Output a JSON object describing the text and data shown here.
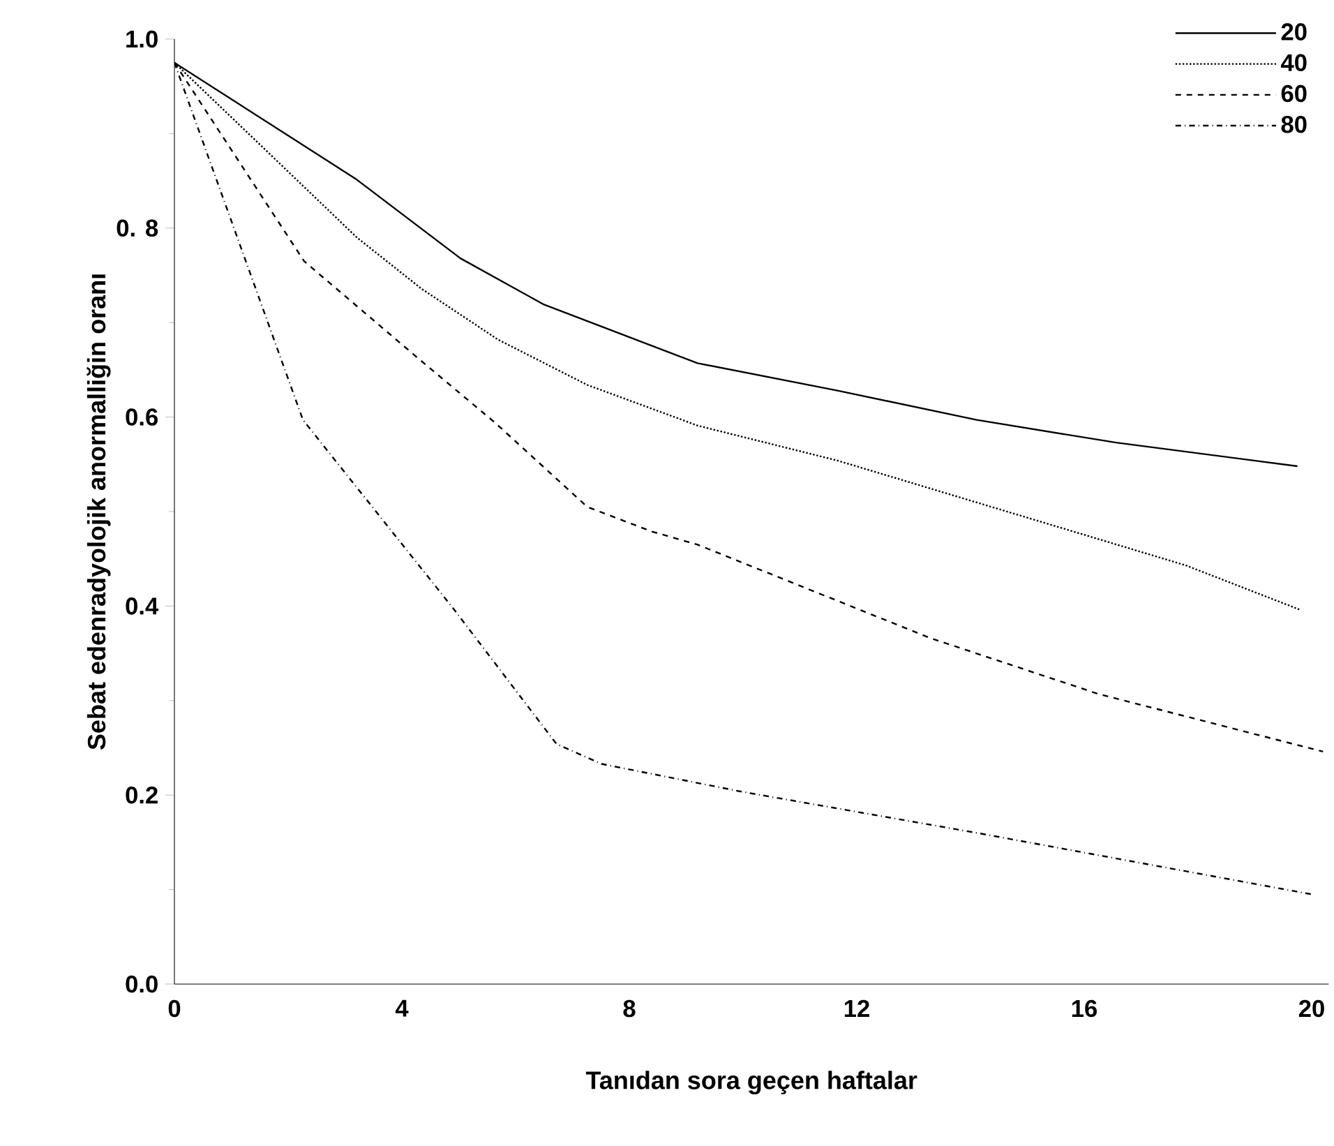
{
  "chart_data": {
    "type": "line",
    "xlabel": "Tanıdan sora geçen haftalar",
    "ylabel": "Sebat edenradyolojik anormalliğin oranı",
    "xlim": [
      0,
      20.3
    ],
    "ylim": [
      0,
      1.0
    ],
    "xticks": [
      0,
      4,
      8,
      12,
      16,
      20
    ],
    "yticks": [
      {
        "value": 0.0,
        "label": "0.0"
      },
      {
        "value": 0.2,
        "label": "0.2"
      },
      {
        "value": 0.4,
        "label": "0.4"
      },
      {
        "value": 0.6,
        "label": "0.6"
      },
      {
        "value": 0.8,
        "label": "0. 8"
      },
      {
        "value": 1.0,
        "label": "1.0"
      }
    ],
    "grid": false,
    "legend": "top right",
    "marker": "none",
    "series": [
      {
        "name": "20",
        "color": "#000000",
        "line_style": "solid",
        "x": [
          0,
          3.19,
          5.03,
          6.5,
          9.2,
          11.66,
          14.11,
          16.56,
          19.75
        ],
        "values": [
          0.975,
          0.852,
          0.768,
          0.719,
          0.657,
          0.628,
          0.597,
          0.573,
          0.548
        ]
      },
      {
        "name": "40",
        "color": "#000000",
        "line_style": "dotted",
        "x": [
          0,
          3.21,
          4.34,
          5.69,
          7.26,
          9.2,
          11.66,
          14.92,
          17.79,
          19.8
        ],
        "values": [
          0.975,
          0.79,
          0.736,
          0.682,
          0.634,
          0.591,
          0.554,
          0.495,
          0.443,
          0.396
        ]
      },
      {
        "name": "60",
        "color": "#000000",
        "line_style": "dashed",
        "x": [
          0,
          2.28,
          4.29,
          5.64,
          7.26,
          8.39,
          9.2,
          13.3,
          16.25,
          20.2
        ],
        "values": [
          0.975,
          0.765,
          0.662,
          0.594,
          0.505,
          0.479,
          0.465,
          0.366,
          0.307,
          0.246
        ]
      },
      {
        "name": "80",
        "color": "#000000",
        "line_style": "dashdot",
        "x": [
          0,
          2.26,
          4.91,
          6.72,
          7.51,
          9.94,
          14.11,
          20.0
        ],
        "values": [
          0.975,
          0.597,
          0.397,
          0.254,
          0.233,
          0.204,
          0.16,
          0.095
        ]
      }
    ]
  }
}
